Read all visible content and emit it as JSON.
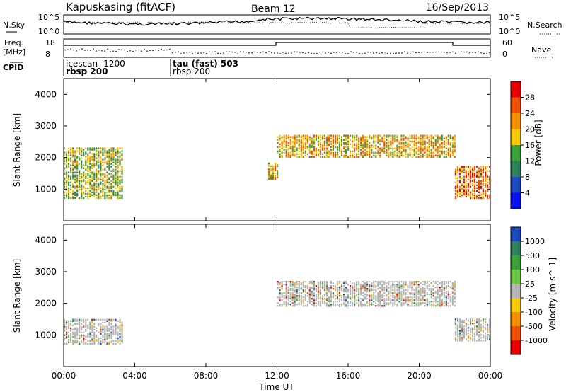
{
  "header": {
    "station": "Kapuskasing (fitACF)",
    "beam": "Beam 12",
    "date": "16/Sep/2013"
  },
  "top_panels": {
    "nsky_label": "N.Sky",
    "nsky_ticks": [
      "10^5",
      "10^0"
    ],
    "nsearch_label": "N.Search",
    "nsearch_ticks": [
      "10^5",
      "10^0"
    ],
    "freq_label": "Freq.",
    "freq_unit": "[MHz]",
    "freq_ticks": [
      "18",
      "8"
    ],
    "nave_label": "Nave",
    "nave_ticks": [
      "60",
      "0"
    ],
    "cpid_label": "CPID",
    "cpid_segments": [
      {
        "name": "icescan -1200",
        "sub": "rbsp 200",
        "start": "00:00",
        "end": "06:00"
      },
      {
        "name": "tau (fast) 503",
        "sub": "rbsp 200",
        "start": "06:00",
        "end": "24:00"
      }
    ]
  },
  "chart_data": [
    {
      "type": "heatmap",
      "title": "",
      "xlabel": "Time UT",
      "ylabel": "Slant Range [km]",
      "xlim": [
        "00:00",
        "24:00"
      ],
      "ylim": [
        0,
        4500
      ],
      "x_ticks": [
        "00:00",
        "04:00",
        "08:00",
        "12:00",
        "16:00",
        "20:00",
        "00:00"
      ],
      "y_ticks": [
        1000,
        2000,
        3000,
        4000
      ],
      "colorbar": {
        "label": "Power [dB]",
        "ticks": [
          "28",
          "24",
          "20",
          "16",
          "12",
          "8",
          "4"
        ],
        "colors": [
          "#e80000",
          "#f05000",
          "#f59000",
          "#f5c800",
          "#3aa03a",
          "#2c7f58",
          "#1a48b8",
          "#0a10f0"
        ]
      },
      "regions": [
        {
          "t0": 0.0,
          "t1": 3.3,
          "r0": 700,
          "r1": 2300,
          "level": 14
        },
        {
          "t0": 11.5,
          "t1": 12.0,
          "r0": 1300,
          "r1": 1800,
          "level": 18
        },
        {
          "t0": 12.0,
          "t1": 22.0,
          "r0": 2000,
          "r1": 2700,
          "level": 16
        },
        {
          "t0": 22.0,
          "t1": 24.0,
          "r0": 700,
          "r1": 1700,
          "level": 20
        }
      ]
    },
    {
      "type": "heatmap",
      "title": "",
      "xlabel": "Time UT",
      "ylabel": "Slant Range [km]",
      "xlim": [
        "00:00",
        "24:00"
      ],
      "ylim": [
        0,
        4500
      ],
      "x_ticks": [
        "00:00",
        "04:00",
        "08:00",
        "12:00",
        "16:00",
        "20:00",
        "00:00"
      ],
      "y_ticks": [
        1000,
        2000,
        3000,
        4000
      ],
      "colorbar": {
        "label": "Velocity [m s^-1]",
        "ticks": [
          "1000",
          "500",
          "100",
          "25",
          "-25",
          "-100",
          "-500",
          "-1000"
        ],
        "colors": [
          "#1a48b8",
          "#2c7f58",
          "#3aa03a",
          "#6cc840",
          "#b4b4b4",
          "#f5c800",
          "#f59000",
          "#f05000",
          "#e80000"
        ]
      },
      "regions": [
        {
          "t0": 0.0,
          "t1": 3.3,
          "r0": 700,
          "r1": 1500,
          "level": 0
        },
        {
          "t0": 12.0,
          "t1": 22.0,
          "r0": 1900,
          "r1": 2700,
          "level": 0
        },
        {
          "t0": 22.0,
          "t1": 24.0,
          "r0": 800,
          "r1": 1500,
          "level": 0
        }
      ]
    }
  ]
}
